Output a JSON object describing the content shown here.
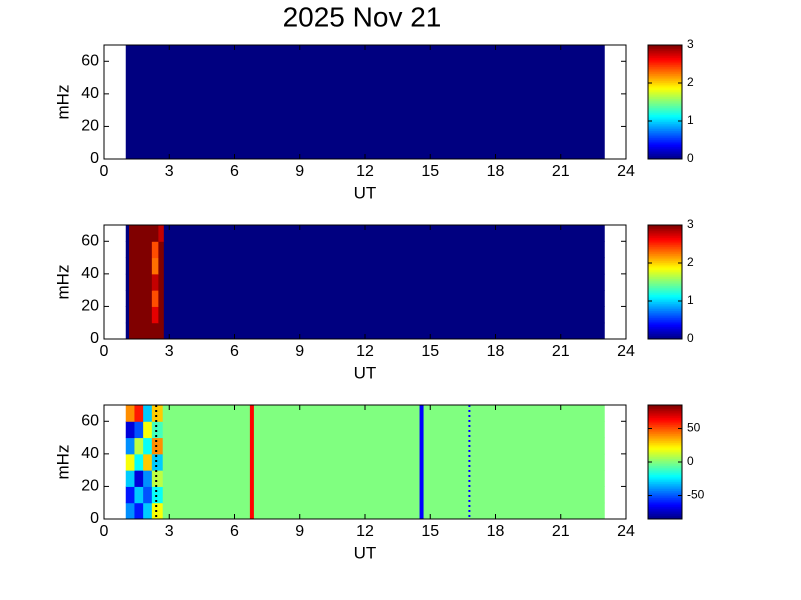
{
  "chart_data": [
    {
      "type": "heatmap",
      "title": "2025 Nov 21",
      "xlabel": "UT",
      "ylabel": "mHz",
      "xlim": [
        0,
        24
      ],
      "ylim": [
        0,
        70
      ],
      "xticks": [
        0,
        3,
        6,
        9,
        12,
        15,
        18,
        21,
        24
      ],
      "yticks": [
        0,
        20,
        40,
        60
      ],
      "bins": [
        1,
        23
      ],
      "ybins": [
        0,
        70
      ],
      "z": [
        [
          0
        ]
      ],
      "clim": [
        0,
        3
      ],
      "cticks": [
        0,
        1,
        2,
        3
      ],
      "colormap": "jet"
    },
    {
      "type": "heatmap",
      "xlabel": "UT",
      "ylabel": "mHz",
      "xlim": [
        0,
        24
      ],
      "ylim": [
        0,
        70
      ],
      "xticks": [
        0,
        3,
        6,
        9,
        12,
        15,
        18,
        21,
        24
      ],
      "yticks": [
        0,
        20,
        40,
        60
      ],
      "bins": [
        1,
        1.15,
        2.2,
        2.5,
        2.75,
        23
      ],
      "ybins": [
        0,
        10,
        20,
        30,
        40,
        50,
        60,
        70
      ],
      "z": [
        [
          0,
          3,
          3,
          3,
          0
        ],
        [
          0,
          3,
          2.7,
          3,
          0
        ],
        [
          0,
          3,
          2.4,
          3,
          0
        ],
        [
          0,
          3,
          2.8,
          3,
          0
        ],
        [
          0,
          3,
          2.3,
          3,
          0
        ],
        [
          0,
          3,
          2.4,
          3,
          0
        ],
        [
          0,
          3,
          3,
          2.8,
          0
        ]
      ],
      "clim": [
        0,
        3
      ],
      "cticks": [
        0,
        1,
        2,
        3
      ],
      "colormap": "jet"
    },
    {
      "type": "heatmap",
      "xlabel": "UT",
      "ylabel": "mHz",
      "xlim": [
        0,
        24
      ],
      "ylim": [
        0,
        70
      ],
      "xticks": [
        0,
        3,
        6,
        9,
        12,
        15,
        18,
        21,
        24
      ],
      "yticks": [
        0,
        20,
        40,
        60
      ],
      "bins": [
        1,
        1.4,
        1.8,
        2.2,
        2.7,
        23
      ],
      "ybins": [
        0,
        10,
        20,
        30,
        40,
        50,
        60,
        70
      ],
      "z": [
        [
          -40,
          -60,
          -30,
          20,
          0
        ],
        [
          -60,
          -30,
          -50,
          -20,
          0
        ],
        [
          -30,
          -70,
          -40,
          10,
          0
        ],
        [
          20,
          -20,
          30,
          -30,
          0
        ],
        [
          -40,
          10,
          -20,
          40,
          0
        ],
        [
          -70,
          -50,
          20,
          -10,
          0
        ],
        [
          40,
          60,
          -30,
          30,
          0
        ]
      ],
      "clim": [
        -85,
        85
      ],
      "cticks": [
        -50,
        0,
        50
      ],
      "colormap": "jet",
      "markers": [
        {
          "x": 2.4,
          "color": "#000000",
          "style": "dotted"
        },
        {
          "x": 6.8,
          "color": "#ff0000",
          "style": "solid"
        },
        {
          "x": 14.6,
          "color": "#0000ff",
          "style": "solid"
        },
        {
          "x": 16.8,
          "color": "#0000ff",
          "style": "dotted"
        }
      ]
    }
  ]
}
